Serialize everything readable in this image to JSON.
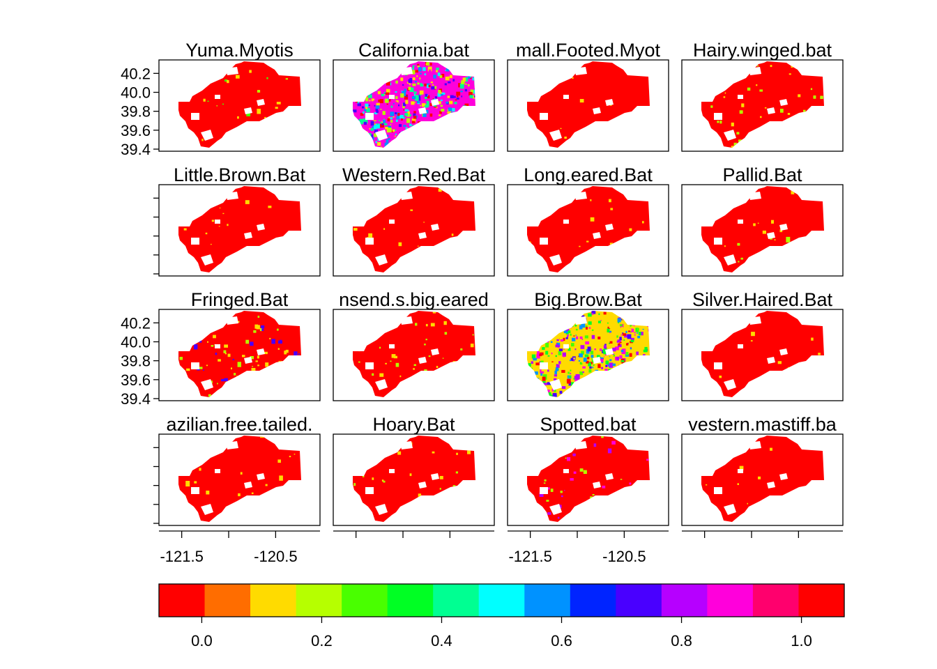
{
  "chart_data": {
    "type": "heatmap",
    "layout": {
      "rows": 4,
      "cols": 4
    },
    "panels": [
      {
        "title": "Yuma.Myotis",
        "dominant_value": 0.0,
        "speckle": [
          0.1,
          0.2,
          0.3
        ],
        "speckle_density": 0.02
      },
      {
        "title": "California.bat",
        "dominant_value": 0.85,
        "speckle": [
          0.0,
          0.1,
          0.2,
          0.4,
          0.5,
          0.6,
          0.75,
          0.9
        ],
        "speckle_density": 0.35
      },
      {
        "title": "mall.Footed.Myot",
        "dominant_value": 0.0,
        "speckle": [
          0.1
        ],
        "speckle_density": 0.01
      },
      {
        "title": "Hairy.winged.bat",
        "dominant_value": 0.0,
        "speckle": [
          0.1,
          0.2
        ],
        "speckle_density": 0.02
      },
      {
        "title": "Little.Brown.Bat",
        "dominant_value": 0.0,
        "speckle": [
          0.1
        ],
        "speckle_density": 0.01
      },
      {
        "title": "Western.Red.Bat",
        "dominant_value": 0.0,
        "speckle": [
          0.1
        ],
        "speckle_density": 0.01
      },
      {
        "title": "Long.eared.Bat",
        "dominant_value": 0.0,
        "speckle": [
          0.1
        ],
        "speckle_density": 0.01
      },
      {
        "title": "Pallid.Bat",
        "dominant_value": 0.0,
        "speckle": [
          0.1,
          0.2
        ],
        "speckle_density": 0.02
      },
      {
        "title": "Fringed.Bat",
        "dominant_value": 0.0,
        "speckle": [
          0.1,
          0.2,
          0.7
        ],
        "speckle_density": 0.07
      },
      {
        "title": "nsend.s.big.eared",
        "dominant_value": 0.0,
        "speckle": [
          0.1,
          0.2
        ],
        "speckle_density": 0.03
      },
      {
        "title": "Big.Brow.Bat",
        "dominant_value": 0.1,
        "speckle": [
          0.0,
          0.15,
          0.25,
          0.35,
          0.55,
          0.7,
          0.8,
          0.9
        ],
        "speckle_density": 0.3
      },
      {
        "title": "Silver.Haired.Bat",
        "dominant_value": 0.0,
        "speckle": [
          0.1
        ],
        "speckle_density": 0.005
      },
      {
        "title": "azilian.free.tailed.",
        "dominant_value": 0.0,
        "speckle": [
          0.1
        ],
        "speckle_density": 0.01
      },
      {
        "title": "Hoary.Bat",
        "dominant_value": 0.0,
        "speckle": [
          0.1,
          0.2
        ],
        "speckle_density": 0.02
      },
      {
        "title": "Spotted.bat",
        "dominant_value": 0.0,
        "speckle": [
          0.8,
          0.9,
          0.2
        ],
        "speckle_density": 0.03
      },
      {
        "title": "vestern.mastiff.ba",
        "dominant_value": 0.0,
        "speckle": [
          0.1
        ],
        "speckle_density": 0.01
      }
    ],
    "y_ticks": [
      "40.2",
      "40.0",
      "39.8",
      "39.6",
      "39.4"
    ],
    "y_tick_values": [
      40.2,
      40.0,
      39.8,
      39.6,
      39.4
    ],
    "y_label_rows": [
      0,
      2
    ],
    "x_ticks": [
      "-121.5",
      "-120.5"
    ],
    "x_tick_values": [
      -121.5,
      -121.0,
      -120.5
    ],
    "x_label_cols": [
      0,
      2
    ],
    "xlim": [
      -121.72,
      -120.05
    ],
    "ylim": [
      39.4,
      40.32
    ],
    "colorbar": {
      "range": [
        -0.0714,
        1.0714
      ],
      "ticks": [
        "0.0",
        "0.2",
        "0.4",
        "0.6",
        "0.8",
        "1.0"
      ],
      "tick_values": [
        0.0,
        0.2,
        0.4,
        0.6,
        0.8,
        1.0
      ],
      "colors": [
        "#FF0000",
        "#FF6D00",
        "#FFDB00",
        "#B6FF00",
        "#49FF00",
        "#00FF24",
        "#00FF92",
        "#00FFFF",
        "#0092FF",
        "#0024FF",
        "#4900FF",
        "#B600FF",
        "#FF00DB",
        "#FF006D",
        "#FF0000"
      ]
    }
  }
}
